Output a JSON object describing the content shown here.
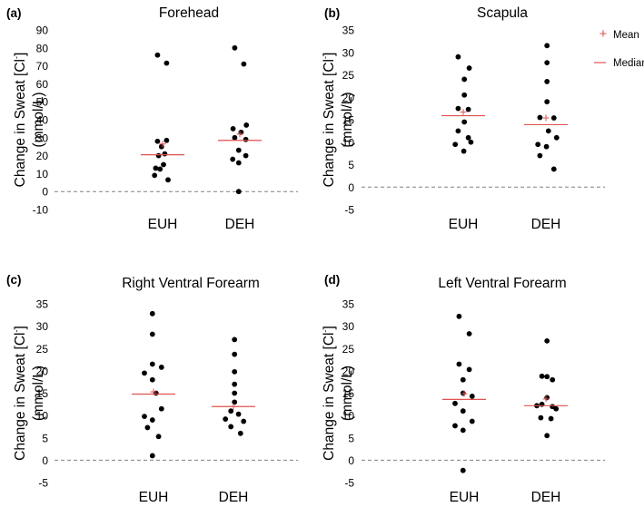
{
  "figure": {
    "legend": {
      "mean_label": "Mean",
      "median_label": "Median",
      "mean_marker": "+"
    },
    "colors": {
      "point": "#000000",
      "mean": "#e0524f",
      "median": "#e0524f",
      "zero_line": "#808080",
      "text": "#000000"
    }
  },
  "chart_data": [
    {
      "type": "scatter",
      "panel_label": "(a)",
      "title": "Forehead",
      "ylabel_line1": "Change in Sweat [Cl",
      "ylabel_sup": "-",
      "ylabel_close": "]",
      "ylabel_line2": "(mmol/L)",
      "categories": [
        "EUH",
        "DEH"
      ],
      "ylim": [
        -10,
        90
      ],
      "yticks": [
        -10,
        0,
        10,
        20,
        30,
        40,
        50,
        60,
        70,
        80,
        90
      ],
      "ytick_labels": [
        "-10",
        "0",
        "10",
        "20",
        "30",
        "40",
        "50",
        "60",
        "70",
        "80",
        "90"
      ],
      "zero_line": true,
      "legend_on_chart": false,
      "groups": [
        {
          "category": "EUH",
          "points": [
            {
              "y": 76,
              "dx": -0.28
            },
            {
              "y": 71.5,
              "dx": 0.22
            },
            {
              "y": 28,
              "dx": -0.28
            },
            {
              "y": 28.5,
              "dx": 0.22
            },
            {
              "y": 25,
              "dx": -0.06
            },
            {
              "y": 21,
              "dx": 0.12
            },
            {
              "y": 20,
              "dx": -0.22
            },
            {
              "y": 15,
              "dx": 0.05
            },
            {
              "y": 13,
              "dx": -0.38
            },
            {
              "y": 12.5,
              "dx": -0.14
            },
            {
              "y": 9,
              "dx": -0.44
            },
            {
              "y": 6.5,
              "dx": 0.3
            }
          ],
          "mean": 26.5,
          "median": 20.5
        },
        {
          "category": "DEH",
          "points": [
            {
              "y": 80,
              "dx": -0.28
            },
            {
              "y": 71,
              "dx": 0.22
            },
            {
              "y": 37,
              "dx": 0.36
            },
            {
              "y": 35,
              "dx": -0.37
            },
            {
              "y": 33,
              "dx": 0.07
            },
            {
              "y": 30,
              "dx": -0.28
            },
            {
              "y": 29,
              "dx": 0.33
            },
            {
              "y": 23,
              "dx": -0.06
            },
            {
              "y": 20,
              "dx": 0.33
            },
            {
              "y": 18,
              "dx": -0.39
            },
            {
              "y": 16,
              "dx": -0.06
            },
            {
              "y": 0,
              "dx": -0.06
            }
          ],
          "mean": 32,
          "median": 28.5
        }
      ]
    },
    {
      "type": "scatter",
      "panel_label": "(b)",
      "title": "Scapula",
      "ylabel_line1": "Change in Sweat [Cl",
      "ylabel_sup": "-",
      "ylabel_close": "]",
      "ylabel_line2": "(mmol/L)",
      "categories": [
        "EUH",
        "DEH"
      ],
      "ylim": [
        -5,
        35
      ],
      "yticks": [
        -5,
        0,
        5,
        10,
        15,
        20,
        25,
        30,
        35
      ],
      "ytick_labels": [
        "-5",
        "0",
        "5",
        "10",
        "15",
        "20",
        "25",
        "30",
        "35"
      ],
      "zero_line": true,
      "legend_on_chart": true,
      "groups": [
        {
          "category": "EUH",
          "points": [
            {
              "y": 29,
              "dx": -0.28
            },
            {
              "y": 26.5,
              "dx": 0.33
            },
            {
              "y": 24,
              "dx": 0.06
            },
            {
              "y": 20.5,
              "dx": 0.06
            },
            {
              "y": 17.5,
              "dx": -0.28
            },
            {
              "y": 17.3,
              "dx": 0.28
            },
            {
              "y": 14.5,
              "dx": 0.06
            },
            {
              "y": 12.5,
              "dx": -0.28
            },
            {
              "y": 11,
              "dx": 0.28
            },
            {
              "y": 10,
              "dx": 0.42
            },
            {
              "y": 9.5,
              "dx": -0.44
            },
            {
              "y": 8,
              "dx": 0.03
            }
          ],
          "mean": 16.7,
          "median": 15.9
        },
        {
          "category": "DEH",
          "points": [
            {
              "y": 31.5,
              "dx": 0.06
            },
            {
              "y": 27.7,
              "dx": 0.06
            },
            {
              "y": 23.5,
              "dx": 0.06
            },
            {
              "y": 19,
              "dx": 0.06
            },
            {
              "y": 15.5,
              "dx": -0.33
            },
            {
              "y": 15.4,
              "dx": 0.44
            },
            {
              "y": 12.5,
              "dx": 0.14
            },
            {
              "y": 11,
              "dx": 0.59
            },
            {
              "y": 9.5,
              "dx": -0.44
            },
            {
              "y": 9,
              "dx": 0.03
            },
            {
              "y": 7,
              "dx": -0.33
            },
            {
              "y": 4,
              "dx": 0.44
            }
          ],
          "mean": 15.4,
          "median": 13.9
        }
      ]
    },
    {
      "type": "scatter",
      "panel_label": "(c)",
      "title": "Right Ventral Forearm",
      "ylabel_line1": "Change in Sweat [Cl",
      "ylabel_sup": "-",
      "ylabel_close": "]",
      "ylabel_line2": "(mmol/L)",
      "categories": [
        "EUH",
        "DEH"
      ],
      "ylim": [
        -5,
        35
      ],
      "yticks": [
        -5,
        0,
        5,
        10,
        15,
        20,
        25,
        30,
        35
      ],
      "ytick_labels": [
        "-5",
        "0",
        "5",
        "10",
        "15",
        "20",
        "25",
        "30",
        "35"
      ],
      "zero_line": true,
      "legend_on_chart": false,
      "groups": [
        {
          "category": "EUH",
          "points": [
            {
              "y": 32.8,
              "dx": -0.06
            },
            {
              "y": 28.2,
              "dx": -0.06
            },
            {
              "y": 21.5,
              "dx": -0.06
            },
            {
              "y": 20.8,
              "dx": 0.44
            },
            {
              "y": 19.5,
              "dx": -0.5
            },
            {
              "y": 18,
              "dx": -0.06
            },
            {
              "y": 15,
              "dx": 0.14
            },
            {
              "y": 11.5,
              "dx": 0.44
            },
            {
              "y": 9.8,
              "dx": -0.5
            },
            {
              "y": 9,
              "dx": -0.06
            },
            {
              "y": 7.3,
              "dx": -0.33
            },
            {
              "y": 5.3,
              "dx": 0.28
            },
            {
              "y": 1,
              "dx": -0.06
            }
          ],
          "mean": 15.3,
          "median": 14.8
        },
        {
          "category": "DEH",
          "points": [
            {
              "y": 27,
              "dx": 0.06
            },
            {
              "y": 23.7,
              "dx": 0.06
            },
            {
              "y": 19.8,
              "dx": 0.06
            },
            {
              "y": 17,
              "dx": 0.06
            },
            {
              "y": 15,
              "dx": 0.06
            },
            {
              "y": 13,
              "dx": 0.06
            },
            {
              "y": 11,
              "dx": -0.14
            },
            {
              "y": 10.3,
              "dx": 0.28
            },
            {
              "y": 9.2,
              "dx": -0.44
            },
            {
              "y": 8.7,
              "dx": 0.56
            },
            {
              "y": 7.5,
              "dx": -0.14
            },
            {
              "y": 6,
              "dx": 0.39
            }
          ],
          "mean": 12,
          "median": 12
        }
      ]
    },
    {
      "type": "scatter",
      "panel_label": "(d)",
      "title": "Left Ventral Forearm",
      "ylabel_line1": "Change in Sweat [Cl",
      "ylabel_sup": "-",
      "ylabel_close": "]",
      "ylabel_line2": "(mmol/L)",
      "categories": [
        "EUH",
        "DEH"
      ],
      "ylim": [
        -5,
        35
      ],
      "yticks": [
        -5,
        0,
        5,
        10,
        15,
        20,
        25,
        30,
        35
      ],
      "ytick_labels": [
        "-5",
        "0",
        "5",
        "10",
        "15",
        "20",
        "25",
        "30",
        "35"
      ],
      "zero_line": true,
      "legend_on_chart": false,
      "groups": [
        {
          "category": "EUH",
          "points": [
            {
              "y": 32.2,
              "dx": -0.28
            },
            {
              "y": 28.3,
              "dx": 0.28
            },
            {
              "y": 21.5,
              "dx": -0.28
            },
            {
              "y": 20.3,
              "dx": 0.28
            },
            {
              "y": 18,
              "dx": -0.06
            },
            {
              "y": 15,
              "dx": -0.06
            },
            {
              "y": 14.3,
              "dx": 0.44
            },
            {
              "y": 12.7,
              "dx": -0.5
            },
            {
              "y": 11,
              "dx": -0.06
            },
            {
              "y": 8.7,
              "dx": 0.44
            },
            {
              "y": 7.7,
              "dx": -0.5
            },
            {
              "y": 6.7,
              "dx": -0.06
            },
            {
              "y": -2.3,
              "dx": -0.06
            }
          ],
          "mean": 14.9,
          "median": 13.6
        },
        {
          "category": "DEH",
          "points": [
            {
              "y": 26.7,
              "dx": 0.06
            },
            {
              "y": 18.8,
              "dx": -0.22
            },
            {
              "y": 18.7,
              "dx": 0.06
            },
            {
              "y": 18,
              "dx": 0.36
            },
            {
              "y": 14,
              "dx": 0.06
            },
            {
              "y": 12.5,
              "dx": -0.22
            },
            {
              "y": 12.2,
              "dx": -0.5
            },
            {
              "y": 12,
              "dx": 0.36
            },
            {
              "y": 11.5,
              "dx": 0.56
            },
            {
              "y": 9.5,
              "dx": -0.28
            },
            {
              "y": 9.3,
              "dx": 0.28
            },
            {
              "y": 5.5,
              "dx": 0.06
            }
          ],
          "mean": 13.7,
          "median": 12.2
        }
      ]
    }
  ]
}
